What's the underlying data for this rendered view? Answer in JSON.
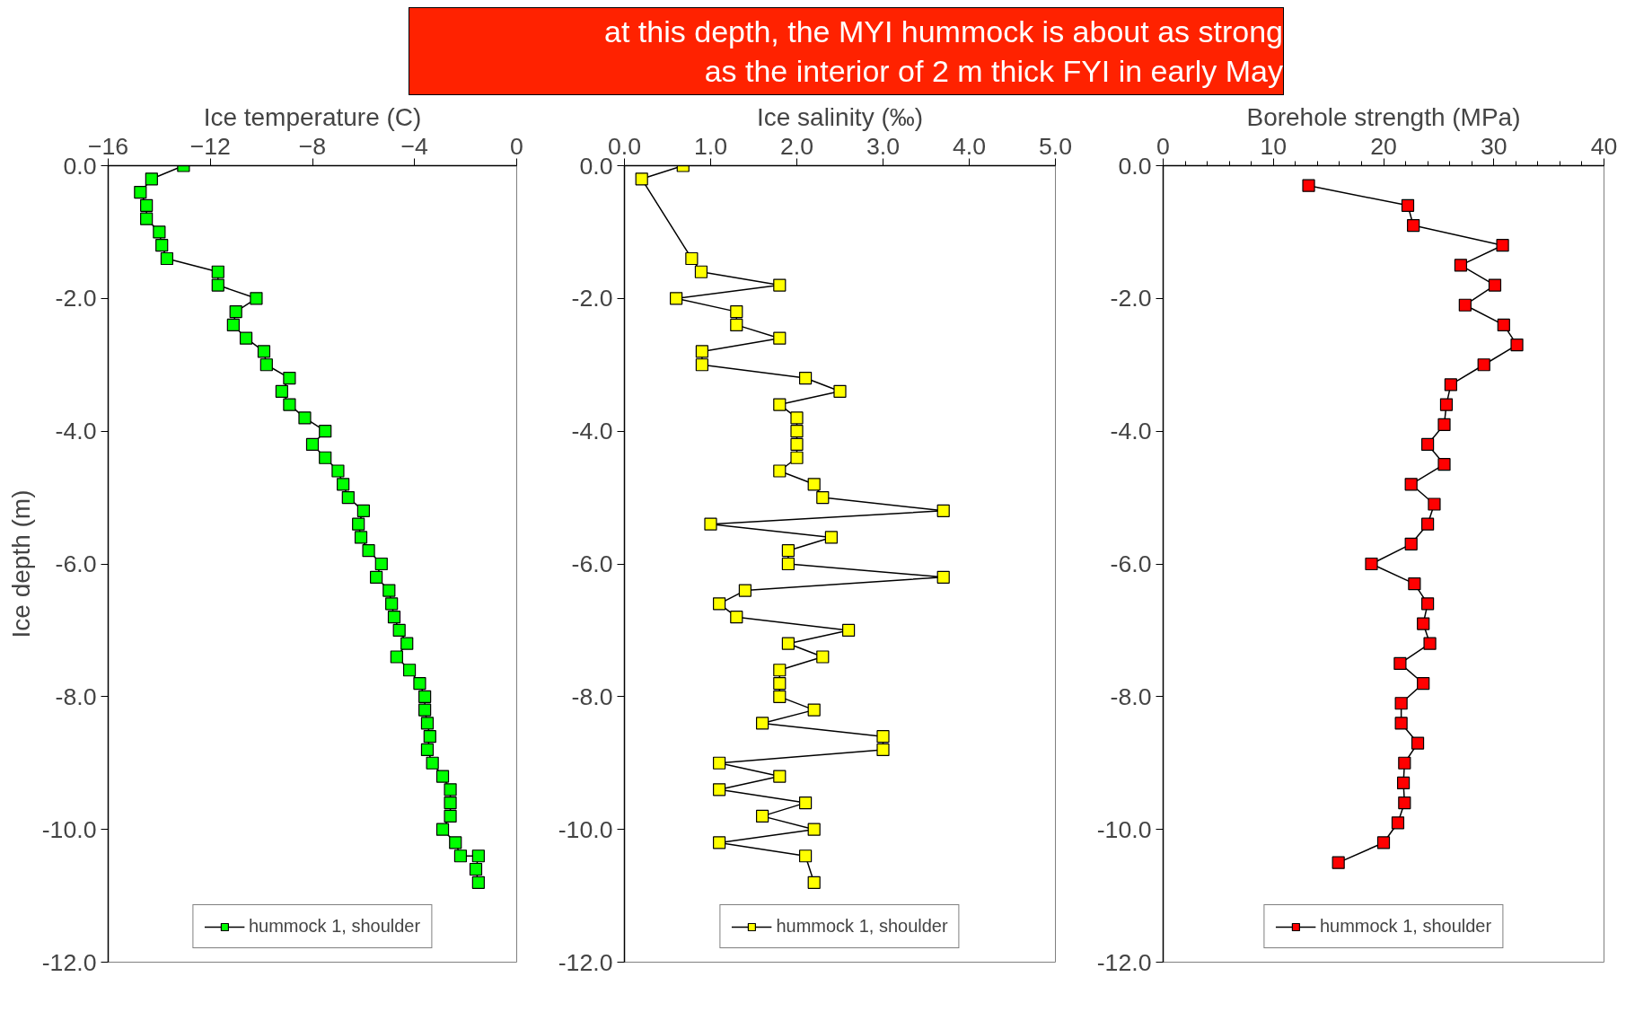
{
  "chart_data": [
    {
      "type": "line",
      "xlabel": "Ice temperature (C)",
      "ylabel": "Ice depth (m)",
      "xlim": [
        -16,
        0
      ],
      "xticks": [
        -16,
        -12,
        -8,
        -4,
        0
      ],
      "ylim": [
        -12,
        0
      ],
      "yticks": [
        {
          "value": 0,
          "label": "0.0"
        },
        {
          "value": -2,
          "label": "-2.0"
        },
        {
          "value": -4,
          "label": "-4.0"
        },
        {
          "value": -6,
          "label": "-6.0"
        },
        {
          "value": -8,
          "label": "-8.0"
        },
        {
          "value": -10,
          "label": "-10.0"
        },
        {
          "value": -12,
          "label": "-12.0"
        }
      ],
      "legend": "bottom",
      "marker": "square",
      "grid": false,
      "series": [
        {
          "name": "hummock 1, shoulder",
          "color": "#00ff00",
          "x": [
            -13.05,
            -14.3,
            -14.74,
            -14.5,
            -14.5,
            -14.0,
            -13.9,
            -13.7,
            -11.7,
            -11.7,
            -10.2,
            -11.0,
            -11.1,
            -10.6,
            -9.9,
            -9.8,
            -8.9,
            -9.2,
            -8.9,
            -8.3,
            -7.5,
            -8.0,
            -7.5,
            -7.0,
            -6.8,
            -6.6,
            -6.0,
            -6.2,
            -6.1,
            -5.8,
            -5.3,
            -5.5,
            -5.0,
            -4.9,
            -4.8,
            -4.6,
            -4.3,
            -4.7,
            -4.2,
            -3.8,
            -3.6,
            -3.6,
            -3.5,
            -3.4,
            -3.5,
            -3.3,
            -2.9,
            -2.6,
            -2.6,
            -2.6,
            -2.9,
            -2.4,
            -2.2,
            -1.5,
            -1.6,
            -1.5
          ],
          "values": [
            0,
            -0.2,
            -0.4,
            -0.6,
            -0.8,
            -1.0,
            -1.2,
            -1.4,
            -1.6,
            -1.8,
            -2.0,
            -2.2,
            -2.4,
            -2.6,
            -2.8,
            -3.0,
            -3.2,
            -3.4,
            -3.6,
            -3.8,
            -4.0,
            -4.2,
            -4.4,
            -4.6,
            -4.8,
            -5.0,
            -5.2,
            -5.4,
            -5.6,
            -5.8,
            -6.0,
            -6.2,
            -6.4,
            -6.6,
            -6.8,
            -7.0,
            -7.2,
            -7.4,
            -7.6,
            -7.8,
            -8.0,
            -8.2,
            -8.4,
            -8.6,
            -8.8,
            -9.0,
            -9.2,
            -9.4,
            -9.6,
            -9.8,
            -10.0,
            -10.2,
            -10.4,
            -10.4,
            -10.6,
            -10.8
          ]
        }
      ]
    },
    {
      "type": "line",
      "xlabel": "Ice salinity (‰)",
      "xlim": [
        0,
        5
      ],
      "xticks": [
        {
          "value": 0,
          "label": "0.0"
        },
        {
          "value": 1,
          "label": "1.0"
        },
        {
          "value": 2,
          "label": "2.0"
        },
        {
          "value": 3,
          "label": "3.0"
        },
        {
          "value": 4,
          "label": "4.0"
        },
        {
          "value": 5,
          "label": "5.0"
        }
      ],
      "ylim": [
        -12,
        0
      ],
      "yticks": [
        {
          "value": 0,
          "label": "0.0"
        },
        {
          "value": -2,
          "label": "-2.0"
        },
        {
          "value": -4,
          "label": "-4.0"
        },
        {
          "value": -6,
          "label": "-6.0"
        },
        {
          "value": -8,
          "label": "-8.0"
        },
        {
          "value": -10,
          "label": "-10.0"
        },
        {
          "value": -12,
          "label": "-12.0"
        }
      ],
      "legend": "bottom",
      "marker": "square",
      "grid": false,
      "series": [
        {
          "name": "hummock 1, shoulder",
          "color": "#ffff00",
          "x": [
            0.68,
            0.2,
            0.78,
            0.89,
            1.8,
            0.6,
            1.3,
            1.3,
            1.8,
            0.9,
            0.9,
            2.1,
            2.5,
            1.8,
            2.0,
            2.0,
            2.0,
            2.0,
            1.8,
            2.2,
            2.3,
            3.7,
            1.0,
            2.4,
            1.9,
            1.9,
            3.7,
            1.4,
            1.1,
            1.3,
            2.6,
            1.9,
            2.3,
            1.8,
            1.8,
            1.8,
            2.2,
            1.6,
            3.0,
            3.0,
            1.1,
            1.8,
            1.1,
            2.1,
            1.6,
            2.2,
            1.1,
            2.1,
            2.2
          ],
          "values": [
            0,
            -0.2,
            -1.4,
            -1.6,
            -1.8,
            -2.0,
            -2.2,
            -2.4,
            -2.6,
            -2.8,
            -3.0,
            -3.2,
            -3.4,
            -3.6,
            -3.8,
            -4.0,
            -4.2,
            -4.4,
            -4.6,
            -4.8,
            -5.0,
            -5.2,
            -5.4,
            -5.6,
            -5.8,
            -6.0,
            -6.2,
            -6.4,
            -6.6,
            -6.8,
            -7.0,
            -7.2,
            -7.4,
            -7.6,
            -7.8,
            -8.0,
            -8.2,
            -8.4,
            -8.6,
            -8.8,
            -9.0,
            -9.2,
            -9.4,
            -9.6,
            -9.8,
            -10.0,
            -10.2,
            -10.4,
            -10.8
          ]
        }
      ]
    },
    {
      "type": "line",
      "xlabel": "Borehole strength (MPa)",
      "xlim": [
        0,
        40
      ],
      "xticks": [
        0,
        10,
        20,
        30,
        40
      ],
      "ylim": [
        -12,
        0
      ],
      "yticks": [
        {
          "value": 0,
          "label": "0.0"
        },
        {
          "value": -2,
          "label": "-2.0"
        },
        {
          "value": -4,
          "label": "-4.0"
        },
        {
          "value": -6,
          "label": "-6.0"
        },
        {
          "value": -8,
          "label": "-8.0"
        },
        {
          "value": -10,
          "label": "-10.0"
        },
        {
          "value": -12,
          "label": "-12.0"
        }
      ],
      "legend": "bottom",
      "marker": "square",
      "grid": false,
      "annotations": [
        "at this depth, the MYI hummock is about as strong\nas the interior of 2 m thick FYI in early May"
      ],
      "series": [
        {
          "name": "hummock 1, shoulder",
          "color": "#ff0000",
          "x": [
            13.2,
            22.2,
            22.7,
            30.8,
            27.0,
            30.1,
            27.4,
            30.9,
            32.1,
            29.1,
            26.1,
            25.7,
            25.5,
            24.0,
            25.5,
            22.5,
            24.6,
            24.0,
            22.5,
            18.9,
            22.8,
            24.0,
            23.6,
            24.2,
            21.5,
            23.6,
            21.6,
            21.6,
            23.1,
            21.9,
            21.8,
            21.9,
            21.3,
            20.0,
            15.9
          ],
          "values": [
            -0.3,
            -0.6,
            -0.9,
            -1.2,
            -1.5,
            -1.8,
            -2.1,
            -2.4,
            -2.7,
            -3.0,
            -3.3,
            -3.6,
            -3.9,
            -4.2,
            -4.5,
            -4.8,
            -5.1,
            -5.4,
            -5.7,
            -6.0,
            -6.3,
            -6.6,
            -6.9,
            -7.2,
            -7.5,
            -7.8,
            -8.1,
            -8.4,
            -8.7,
            -9.0,
            -9.3,
            -9.6,
            -9.9,
            -10.2,
            -10.5
          ]
        }
      ]
    }
  ]
}
